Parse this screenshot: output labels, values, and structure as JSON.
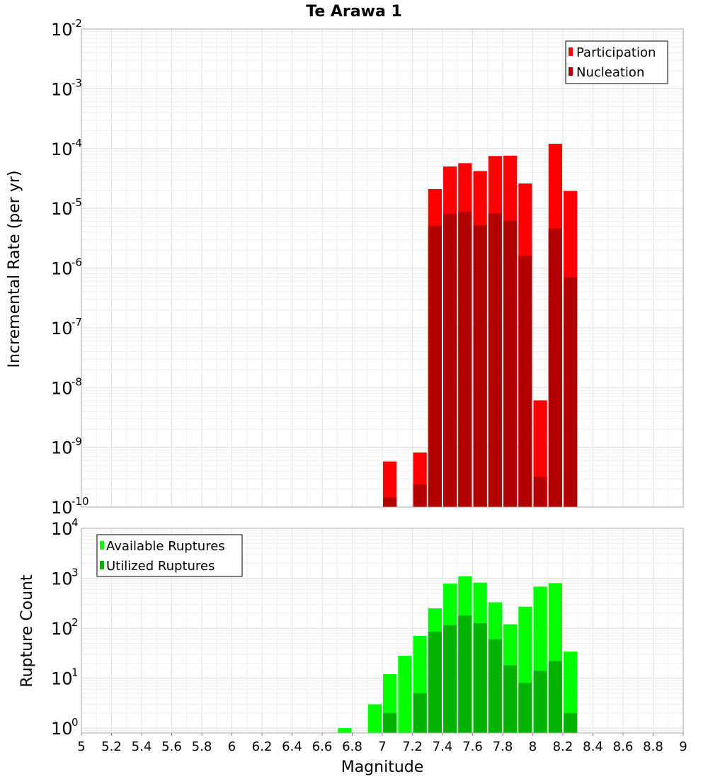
{
  "chart_data": [
    {
      "type": "bar",
      "title": "Te Arawa 1",
      "xlabel": "",
      "ylabel": "Incremental Rate (per yr)",
      "yscale": "log",
      "ylim": [
        1e-10,
        0.01
      ],
      "xlim": [
        5,
        9
      ],
      "grid": true,
      "legend_position": "top-right",
      "x": [
        7.05,
        7.15,
        7.25,
        7.35,
        7.45,
        7.55,
        7.65,
        7.75,
        7.85,
        7.95,
        8.05,
        8.15,
        8.25
      ],
      "series": [
        {
          "name": "Participation",
          "color": "#ff0000",
          "values": [
            5.8e-10,
            null,
            8.2e-10,
            2.1e-05,
            5e-05,
            5.7e-05,
            4.2e-05,
            7.5e-05,
            7.6e-05,
            2.6e-05,
            6.1e-09,
            0.00012,
            1.95e-05
          ]
        },
        {
          "name": "Nucleation",
          "color": "#b30000",
          "values": [
            1.45e-10,
            null,
            2.4e-10,
            5.1e-06,
            8.1e-06,
            8.8e-06,
            5.2e-06,
            8.2e-06,
            6.2e-06,
            1.6e-06,
            3.2e-10,
            4.6e-06,
            7e-07
          ]
        }
      ],
      "y_ticks": [
        {
          "base": "10",
          "exp": "-2",
          "value": 0.01
        },
        {
          "base": "10",
          "exp": "-3",
          "value": 0.001
        },
        {
          "base": "10",
          "exp": "-4",
          "value": 0.0001
        },
        {
          "base": "10",
          "exp": "-5",
          "value": 1e-05
        },
        {
          "base": "10",
          "exp": "-6",
          "value": 1e-06
        },
        {
          "base": "10",
          "exp": "-7",
          "value": 1e-07
        },
        {
          "base": "10",
          "exp": "-8",
          "value": 1e-08
        },
        {
          "base": "10",
          "exp": "-9",
          "value": 1e-09
        },
        {
          "base": "10",
          "exp": "-10",
          "value": 1e-10
        }
      ]
    },
    {
      "type": "bar",
      "title": "",
      "xlabel": "Magnitude",
      "ylabel": "Rupture Count",
      "yscale": "log",
      "ylim": [
        0.8,
        10000
      ],
      "xlim": [
        5,
        9
      ],
      "grid": true,
      "legend_position": "top-left",
      "x": [
        6.75,
        6.85,
        6.95,
        7.05,
        7.15,
        7.25,
        7.35,
        7.45,
        7.55,
        7.65,
        7.75,
        7.85,
        7.95,
        8.05,
        8.15,
        8.25
      ],
      "series": [
        {
          "name": "Available Ruptures",
          "color": "#00ff00",
          "values": [
            1,
            null,
            3,
            12,
            28,
            70,
            250,
            780,
            1100,
            820,
            330,
            120,
            270,
            680,
            800,
            34
          ]
        },
        {
          "name": "Utilized Ruptures",
          "color": "#00b400",
          "values": [
            null,
            null,
            null,
            2,
            null,
            5,
            85,
            115,
            180,
            125,
            60,
            18,
            8,
            14,
            22,
            2
          ]
        }
      ],
      "y_ticks": [
        {
          "base": "10",
          "exp": "4",
          "value": 10000
        },
        {
          "base": "10",
          "exp": "3",
          "value": 1000
        },
        {
          "base": "10",
          "exp": "2",
          "value": 100
        },
        {
          "base": "10",
          "exp": "1",
          "value": 10
        },
        {
          "base": "10",
          "exp": "0",
          "value": 1
        }
      ],
      "x_ticks": [
        "5",
        "5.2",
        "5.4",
        "5.6",
        "5.8",
        "6",
        "6.2",
        "6.4",
        "6.6",
        "6.8",
        "7",
        "7.2",
        "7.4",
        "7.6",
        "7.8",
        "8",
        "8.2",
        "8.4",
        "8.6",
        "8.8",
        "9"
      ]
    }
  ]
}
